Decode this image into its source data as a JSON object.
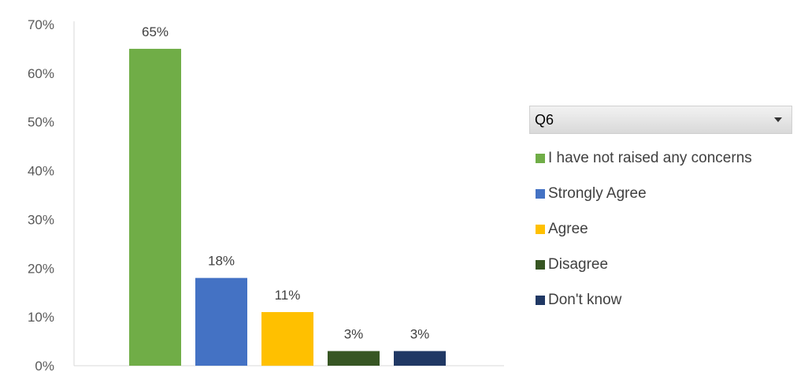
{
  "chart_data": {
    "type": "bar",
    "categories": [
      "I have not raised any concerns",
      "Strongly Agree",
      "Agree",
      "Disagree",
      "Don't know"
    ],
    "values": [
      65,
      18,
      11,
      3,
      3
    ],
    "data_labels": [
      "65%",
      "18%",
      "11%",
      "3%",
      "3%"
    ],
    "colors": [
      "#70ad47",
      "#4472c4",
      "#ffc000",
      "#375623",
      "#203864"
    ],
    "ylim": [
      0,
      70
    ],
    "yticks": [
      0,
      10,
      20,
      30,
      40,
      50,
      60,
      70
    ],
    "ytick_labels": [
      "0%",
      "10%",
      "20%",
      "30%",
      "40%",
      "50%",
      "60%",
      "70%"
    ],
    "grid": false,
    "legend": {
      "placement": "right",
      "title": "Q6",
      "items": [
        "I have not raised any concerns",
        "Strongly Agree",
        "Agree",
        "Disagree",
        "Don't know"
      ]
    }
  }
}
